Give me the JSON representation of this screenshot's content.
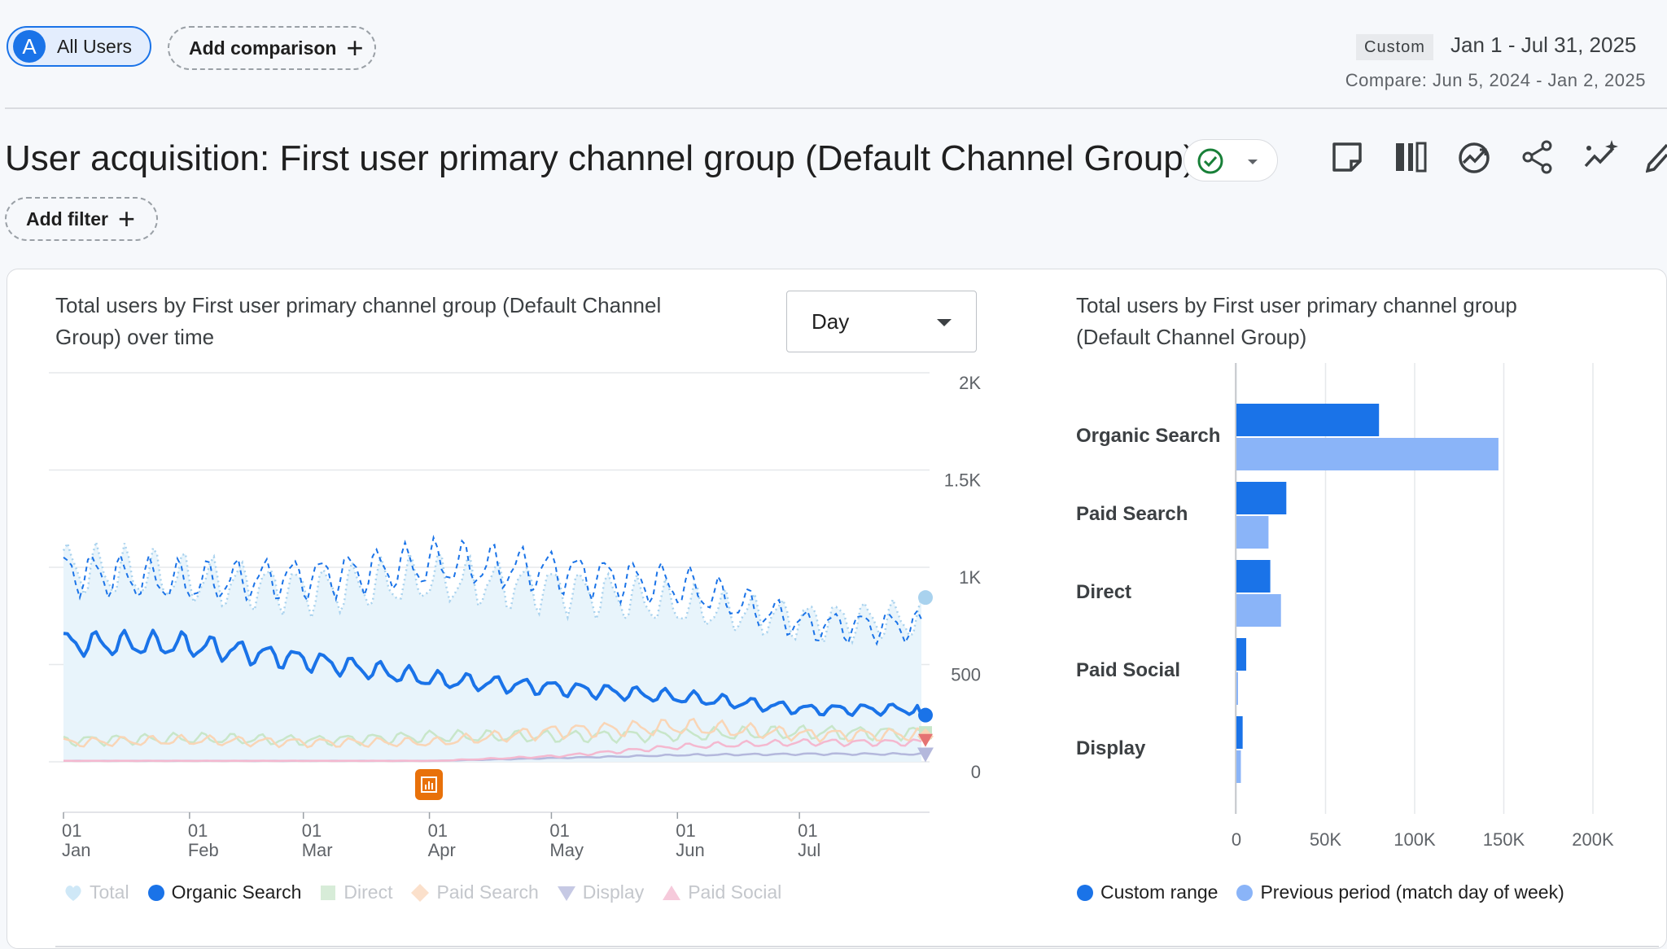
{
  "header": {
    "segment_avatar": "A",
    "segment_label": "All Users",
    "add_comparison": "Add comparison",
    "date_tag": "Custom",
    "date_range": "Jan 1 - Jul 31, 2025",
    "compare_range": "Compare: Jun 5, 2024 - Jan 2, 2025"
  },
  "report": {
    "title": "User acquisition: First user primary channel group (Default Channel Group)",
    "add_filter": "Add filter",
    "toolbar_icons": [
      "note-icon",
      "compare-columns-icon",
      "insights-trend-icon",
      "share-icon",
      "sparkle-insights-icon",
      "edit-icon"
    ]
  },
  "colors": {
    "primary": "#1a73e8",
    "light_blue": "#8ab4f8",
    "total_fill": "#e8f4fb",
    "direct": "#c8e6c9",
    "paid_search": "#f9d5b6",
    "display": "#b4b8dc",
    "paid_social": "#f4b8cf",
    "annotation": "#e8710a"
  },
  "chart_data": [
    {
      "type": "line",
      "title_line1": "Total users by First user primary channel group (Default Channel",
      "title_line2": "Group) over time",
      "granularity": "Day",
      "x_range": [
        "2025-01-01",
        "2025-07-31"
      ],
      "x_ticks": [
        {
          "day": "01",
          "month": "Jan"
        },
        {
          "day": "01",
          "month": "Feb"
        },
        {
          "day": "01",
          "month": "Mar"
        },
        {
          "day": "01",
          "month": "Apr"
        },
        {
          "day": "01",
          "month": "May"
        },
        {
          "day": "01",
          "month": "Jun"
        },
        {
          "day": "01",
          "month": "Jul"
        }
      ],
      "y_ticks": [
        "2K",
        "1.5K",
        "1K",
        "500",
        "0"
      ],
      "ylim": [
        0,
        2000
      ],
      "legend": [
        "Total",
        "Organic Search",
        "Direct",
        "Paid Search",
        "Display",
        "Paid Social"
      ],
      "legend_position": "bottom",
      "series": [
        {
          "name": "Total",
          "style": "light fill, dotted",
          "monthly_avg": [
            1000,
            940,
            880,
            940,
            890,
            800,
            730
          ]
        },
        {
          "name": "Organic Search",
          "style": "bold line",
          "monthly_avg": [
            610,
            600,
            520,
            420,
            380,
            330,
            270
          ],
          "last_value": 240
        },
        {
          "name": "Direct",
          "monthly_avg": [
            110,
            120,
            110,
            130,
            130,
            140,
            150
          ]
        },
        {
          "name": "Paid Search",
          "monthly_avg": [
            100,
            110,
            100,
            100,
            160,
            180,
            140
          ]
        },
        {
          "name": "Display",
          "monthly_avg": [
            5,
            5,
            5,
            5,
            20,
            35,
            40
          ]
        },
        {
          "name": "Paid Social",
          "monthly_avg": [
            5,
            5,
            5,
            5,
            30,
            80,
            100
          ]
        }
      ],
      "comparison_series": {
        "name": "Total (previous period)",
        "style": "dashed",
        "monthly_avg": [
          980,
          920,
          950,
          1020,
          980,
          900,
          700
        ]
      }
    },
    {
      "type": "bar",
      "orientation": "horizontal",
      "title_line1": "Total users by First user primary channel group",
      "title_line2": "(Default Channel Group)",
      "categories": [
        "Organic Search",
        "Paid Search",
        "Direct",
        "Paid Social",
        "Display"
      ],
      "series": [
        {
          "name": "Custom range",
          "values": [
            80000,
            28000,
            19000,
            5500,
            3500
          ]
        },
        {
          "name": "Previous period (match day of week)",
          "values": [
            147000,
            18000,
            25000,
            800,
            2500
          ]
        }
      ],
      "x_ticks": [
        "0",
        "50K",
        "100K",
        "150K",
        "200K"
      ],
      "xlim": [
        0,
        200000
      ],
      "legend_position": "bottom"
    }
  ]
}
